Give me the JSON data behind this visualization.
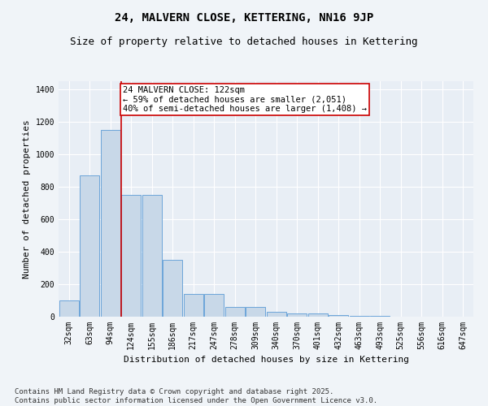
{
  "title1": "24, MALVERN CLOSE, KETTERING, NN16 9JP",
  "title2": "Size of property relative to detached houses in Kettering",
  "xlabel": "Distribution of detached houses by size in Kettering",
  "ylabel": "Number of detached properties",
  "categories": [
    "32sqm",
    "63sqm",
    "94sqm",
    "124sqm",
    "155sqm",
    "186sqm",
    "217sqm",
    "247sqm",
    "278sqm",
    "309sqm",
    "340sqm",
    "370sqm",
    "401sqm",
    "432sqm",
    "463sqm",
    "493sqm",
    "525sqm",
    "556sqm",
    "616sqm",
    "647sqm"
  ],
  "values": [
    100,
    870,
    1150,
    750,
    750,
    350,
    140,
    140,
    60,
    60,
    30,
    20,
    20,
    8,
    5,
    3,
    2,
    1,
    1,
    0
  ],
  "bar_color": "#c8d8e8",
  "bar_edge_color": "#5b9bd5",
  "vline_color": "#cc0000",
  "annotation_text": "24 MALVERN CLOSE: 122sqm\n← 59% of detached houses are smaller (2,051)\n40% of semi-detached houses are larger (1,408) →",
  "annotation_box_color": "#cc0000",
  "ylim": [
    0,
    1450
  ],
  "yticks": [
    0,
    200,
    400,
    600,
    800,
    1000,
    1200,
    1400
  ],
  "background_color": "#e8eef5",
  "fig_background_color": "#f0f4f8",
  "grid_color": "#ffffff",
  "footer": "Contains HM Land Registry data © Crown copyright and database right 2025.\nContains public sector information licensed under the Open Government Licence v3.0.",
  "title1_fontsize": 10,
  "title2_fontsize": 9,
  "xlabel_fontsize": 8,
  "ylabel_fontsize": 8,
  "tick_fontsize": 7,
  "annotation_fontsize": 7.5,
  "footer_fontsize": 6.5
}
